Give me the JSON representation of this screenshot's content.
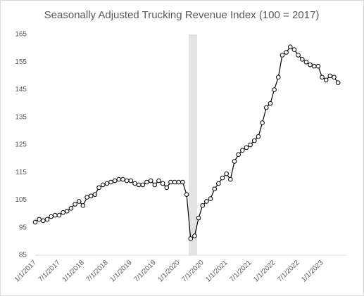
{
  "chart_data": {
    "type": "line",
    "title": "Seasonally Adjusted Trucking Revenue Index (100 = 2017)",
    "categories": [
      "1/1/2017",
      null,
      null,
      null,
      null,
      null,
      "7/1/2017",
      null,
      null,
      null,
      null,
      null,
      "1/1/2018",
      null,
      null,
      null,
      null,
      null,
      "7/1/2018",
      null,
      null,
      null,
      null,
      null,
      "1/1/2019",
      null,
      null,
      null,
      null,
      null,
      "7/1/2019",
      null,
      null,
      null,
      null,
      null,
      "1/1/2020",
      null,
      null,
      null,
      null,
      null,
      "7/1/2020",
      null,
      null,
      null,
      null,
      null,
      "1/1/2021",
      null,
      null,
      null,
      null,
      null,
      "7/1/2021",
      null,
      null,
      null,
      null,
      null,
      "1/1/2022",
      null,
      null,
      null,
      null,
      null,
      "7/1/2022",
      null,
      null,
      null,
      null,
      null,
      "1/1/2023",
      null,
      null,
      null,
      null
    ],
    "values": [
      97,
      98,
      97.5,
      98,
      99,
      99.5,
      99.5,
      100.5,
      101,
      102,
      103.5,
      104.5,
      103,
      106,
      106.5,
      107,
      109.5,
      110.5,
      111,
      111.5,
      112,
      112.5,
      112.5,
      112,
      112,
      111,
      110.5,
      110.5,
      111.5,
      112,
      110.5,
      112,
      111,
      109.5,
      111.5,
      111.5,
      111.5,
      111.5,
      107,
      91,
      92,
      98.5,
      103,
      104.5,
      105.5,
      109,
      111,
      113,
      114.5,
      112.5,
      119,
      121.5,
      123,
      124,
      125,
      126.5,
      128,
      133,
      138.5,
      140,
      145,
      149.5,
      157.5,
      158.5,
      160.5,
      159.5,
      157.5,
      156,
      155,
      154,
      153.5,
      153.5,
      149.5,
      148.5,
      150,
      149.5,
      147.5
    ],
    "color": "#000000",
    "ylim": [
      85,
      165
    ],
    "yticks": [
      85,
      95,
      105,
      115,
      125,
      135,
      145,
      155,
      165
    ],
    "grid": false
  }
}
